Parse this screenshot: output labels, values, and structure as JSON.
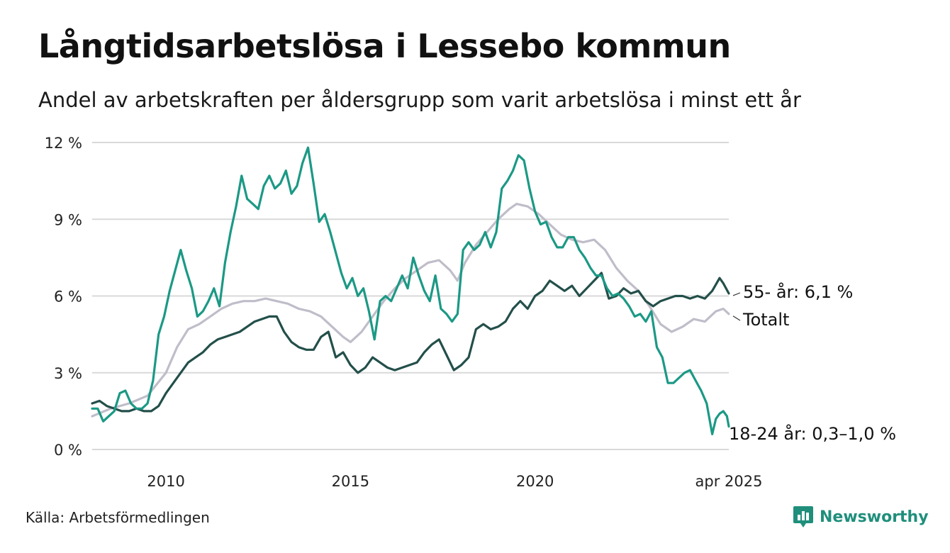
{
  "chart_data": {
    "type": "line",
    "title": "Långtidsarbetslösa i Lessebo kommun",
    "subtitle": "Andel av arbetskraften per åldersgrupp som varit arbetslösa i minst ett år",
    "ylim": [
      0,
      12
    ],
    "y_ticks": [
      0,
      3,
      6,
      9,
      12
    ],
    "y_tick_labels": [
      "0 %",
      "3 %",
      "6 %",
      "9 %",
      "12 %"
    ],
    "xlim": [
      2008.0,
      2025.25
    ],
    "x_ticks": [
      2010,
      2015,
      2020,
      2025.25
    ],
    "x_tick_labels": [
      "2010",
      "2015",
      "2020",
      "apr 2025"
    ],
    "grid": "horizontal",
    "series": [
      {
        "key": "total",
        "name": "Totalt",
        "label": "Totalt",
        "color": "#c0bdca",
        "points": [
          [
            2008.0,
            1.3
          ],
          [
            2008.5,
            1.6
          ],
          [
            2009.0,
            1.8
          ],
          [
            2009.5,
            2.1
          ],
          [
            2010.0,
            3.0
          ],
          [
            2010.3,
            4.0
          ],
          [
            2010.6,
            4.7
          ],
          [
            2010.9,
            4.9
          ],
          [
            2011.2,
            5.2
          ],
          [
            2011.5,
            5.5
          ],
          [
            2011.8,
            5.7
          ],
          [
            2012.1,
            5.8
          ],
          [
            2012.4,
            5.8
          ],
          [
            2012.7,
            5.9
          ],
          [
            2013.0,
            5.8
          ],
          [
            2013.3,
            5.7
          ],
          [
            2013.6,
            5.5
          ],
          [
            2013.9,
            5.4
          ],
          [
            2014.2,
            5.2
          ],
          [
            2014.5,
            4.8
          ],
          [
            2014.8,
            4.4
          ],
          [
            2015.0,
            4.2
          ],
          [
            2015.3,
            4.6
          ],
          [
            2015.6,
            5.2
          ],
          [
            2015.9,
            5.8
          ],
          [
            2016.2,
            6.3
          ],
          [
            2016.5,
            6.7
          ],
          [
            2016.8,
            7.0
          ],
          [
            2017.1,
            7.3
          ],
          [
            2017.4,
            7.4
          ],
          [
            2017.7,
            7.0
          ],
          [
            2017.9,
            6.6
          ],
          [
            2018.1,
            7.3
          ],
          [
            2018.4,
            8.0
          ],
          [
            2018.7,
            8.5
          ],
          [
            2019.0,
            9.0
          ],
          [
            2019.3,
            9.4
          ],
          [
            2019.5,
            9.6
          ],
          [
            2019.8,
            9.5
          ],
          [
            2020.1,
            9.2
          ],
          [
            2020.4,
            8.8
          ],
          [
            2020.7,
            8.4
          ],
          [
            2021.0,
            8.2
          ],
          [
            2021.3,
            8.1
          ],
          [
            2021.6,
            8.2
          ],
          [
            2021.9,
            7.8
          ],
          [
            2022.2,
            7.1
          ],
          [
            2022.5,
            6.6
          ],
          [
            2022.8,
            6.2
          ],
          [
            2023.1,
            5.6
          ],
          [
            2023.4,
            4.9
          ],
          [
            2023.7,
            4.6
          ],
          [
            2024.0,
            4.8
          ],
          [
            2024.3,
            5.1
          ],
          [
            2024.6,
            5.0
          ],
          [
            2024.9,
            5.4
          ],
          [
            2025.1,
            5.5
          ],
          [
            2025.25,
            5.3
          ]
        ]
      },
      {
        "key": "older",
        "name": "55- år",
        "label": "55- år: 6,1 %",
        "color": "#234f4a",
        "points": [
          [
            2008.0,
            1.8
          ],
          [
            2008.2,
            1.9
          ],
          [
            2008.4,
            1.7
          ],
          [
            2008.6,
            1.6
          ],
          [
            2008.8,
            1.5
          ],
          [
            2009.0,
            1.5
          ],
          [
            2009.2,
            1.6
          ],
          [
            2009.4,
            1.5
          ],
          [
            2009.6,
            1.5
          ],
          [
            2009.8,
            1.7
          ],
          [
            2010.0,
            2.2
          ],
          [
            2010.2,
            2.6
          ],
          [
            2010.4,
            3.0
          ],
          [
            2010.6,
            3.4
          ],
          [
            2010.8,
            3.6
          ],
          [
            2011.0,
            3.8
          ],
          [
            2011.2,
            4.1
          ],
          [
            2011.4,
            4.3
          ],
          [
            2011.6,
            4.4
          ],
          [
            2011.8,
            4.5
          ],
          [
            2012.0,
            4.6
          ],
          [
            2012.2,
            4.8
          ],
          [
            2012.4,
            5.0
          ],
          [
            2012.6,
            5.1
          ],
          [
            2012.8,
            5.2
          ],
          [
            2013.0,
            5.2
          ],
          [
            2013.2,
            4.6
          ],
          [
            2013.4,
            4.2
          ],
          [
            2013.6,
            4.0
          ],
          [
            2013.8,
            3.9
          ],
          [
            2014.0,
            3.9
          ],
          [
            2014.2,
            4.4
          ],
          [
            2014.4,
            4.6
          ],
          [
            2014.6,
            3.6
          ],
          [
            2014.8,
            3.8
          ],
          [
            2015.0,
            3.3
          ],
          [
            2015.2,
            3.0
          ],
          [
            2015.4,
            3.2
          ],
          [
            2015.6,
            3.6
          ],
          [
            2015.8,
            3.4
          ],
          [
            2016.0,
            3.2
          ],
          [
            2016.2,
            3.1
          ],
          [
            2016.4,
            3.2
          ],
          [
            2016.6,
            3.3
          ],
          [
            2016.8,
            3.4
          ],
          [
            2017.0,
            3.8
          ],
          [
            2017.2,
            4.1
          ],
          [
            2017.4,
            4.3
          ],
          [
            2017.6,
            3.7
          ],
          [
            2017.8,
            3.1
          ],
          [
            2018.0,
            3.3
          ],
          [
            2018.2,
            3.6
          ],
          [
            2018.4,
            4.7
          ],
          [
            2018.6,
            4.9
          ],
          [
            2018.8,
            4.7
          ],
          [
            2019.0,
            4.8
          ],
          [
            2019.2,
            5.0
          ],
          [
            2019.4,
            5.5
          ],
          [
            2019.6,
            5.8
          ],
          [
            2019.8,
            5.5
          ],
          [
            2020.0,
            6.0
          ],
          [
            2020.2,
            6.2
          ],
          [
            2020.4,
            6.6
          ],
          [
            2020.6,
            6.4
          ],
          [
            2020.8,
            6.2
          ],
          [
            2021.0,
            6.4
          ],
          [
            2021.2,
            6.0
          ],
          [
            2021.4,
            6.3
          ],
          [
            2021.6,
            6.6
          ],
          [
            2021.8,
            6.9
          ],
          [
            2022.0,
            5.9
          ],
          [
            2022.2,
            6.0
          ],
          [
            2022.4,
            6.3
          ],
          [
            2022.6,
            6.1
          ],
          [
            2022.8,
            6.2
          ],
          [
            2023.0,
            5.8
          ],
          [
            2023.2,
            5.6
          ],
          [
            2023.4,
            5.8
          ],
          [
            2023.6,
            5.9
          ],
          [
            2023.8,
            6.0
          ],
          [
            2024.0,
            6.0
          ],
          [
            2024.2,
            5.9
          ],
          [
            2024.4,
            6.0
          ],
          [
            2024.6,
            5.9
          ],
          [
            2024.8,
            6.2
          ],
          [
            2025.0,
            6.7
          ],
          [
            2025.1,
            6.5
          ],
          [
            2025.25,
            6.1
          ]
        ]
      },
      {
        "key": "young",
        "name": "18-24 år",
        "label": "18-24 år: 0,3–1,0 %",
        "color": "#1b9985",
        "points": [
          [
            2008.0,
            1.6
          ],
          [
            2008.15,
            1.6
          ],
          [
            2008.3,
            1.1
          ],
          [
            2008.45,
            1.3
          ],
          [
            2008.6,
            1.5
          ],
          [
            2008.75,
            2.2
          ],
          [
            2008.9,
            2.3
          ],
          [
            2009.05,
            1.8
          ],
          [
            2009.2,
            1.6
          ],
          [
            2009.35,
            1.6
          ],
          [
            2009.5,
            1.8
          ],
          [
            2009.65,
            2.7
          ],
          [
            2009.8,
            4.5
          ],
          [
            2009.95,
            5.2
          ],
          [
            2010.1,
            6.2
          ],
          [
            2010.25,
            7.0
          ],
          [
            2010.4,
            7.8
          ],
          [
            2010.55,
            7.0
          ],
          [
            2010.7,
            6.3
          ],
          [
            2010.85,
            5.2
          ],
          [
            2011.0,
            5.4
          ],
          [
            2011.15,
            5.8
          ],
          [
            2011.3,
            6.3
          ],
          [
            2011.45,
            5.6
          ],
          [
            2011.6,
            7.3
          ],
          [
            2011.75,
            8.5
          ],
          [
            2011.9,
            9.5
          ],
          [
            2012.05,
            10.7
          ],
          [
            2012.2,
            9.8
          ],
          [
            2012.35,
            9.6
          ],
          [
            2012.5,
            9.4
          ],
          [
            2012.65,
            10.3
          ],
          [
            2012.8,
            10.7
          ],
          [
            2012.95,
            10.2
          ],
          [
            2013.1,
            10.4
          ],
          [
            2013.25,
            10.9
          ],
          [
            2013.4,
            10.0
          ],
          [
            2013.55,
            10.3
          ],
          [
            2013.7,
            11.2
          ],
          [
            2013.85,
            11.8
          ],
          [
            2014.0,
            10.4
          ],
          [
            2014.15,
            8.9
          ],
          [
            2014.3,
            9.2
          ],
          [
            2014.45,
            8.5
          ],
          [
            2014.6,
            7.7
          ],
          [
            2014.75,
            6.9
          ],
          [
            2014.9,
            6.3
          ],
          [
            2015.05,
            6.7
          ],
          [
            2015.2,
            6.0
          ],
          [
            2015.35,
            6.3
          ],
          [
            2015.5,
            5.4
          ],
          [
            2015.65,
            4.3
          ],
          [
            2015.8,
            5.8
          ],
          [
            2015.95,
            6.0
          ],
          [
            2016.1,
            5.8
          ],
          [
            2016.25,
            6.3
          ],
          [
            2016.4,
            6.8
          ],
          [
            2016.55,
            6.3
          ],
          [
            2016.7,
            7.5
          ],
          [
            2016.85,
            6.8
          ],
          [
            2017.0,
            6.2
          ],
          [
            2017.15,
            5.8
          ],
          [
            2017.3,
            6.8
          ],
          [
            2017.45,
            5.5
          ],
          [
            2017.6,
            5.3
          ],
          [
            2017.75,
            5.0
          ],
          [
            2017.9,
            5.3
          ],
          [
            2018.05,
            7.8
          ],
          [
            2018.2,
            8.1
          ],
          [
            2018.35,
            7.8
          ],
          [
            2018.5,
            8.0
          ],
          [
            2018.65,
            8.5
          ],
          [
            2018.8,
            7.9
          ],
          [
            2018.95,
            8.5
          ],
          [
            2019.1,
            10.2
          ],
          [
            2019.25,
            10.5
          ],
          [
            2019.4,
            10.9
          ],
          [
            2019.55,
            11.5
          ],
          [
            2019.7,
            11.3
          ],
          [
            2019.85,
            10.2
          ],
          [
            2020.0,
            9.3
          ],
          [
            2020.15,
            8.8
          ],
          [
            2020.3,
            8.9
          ],
          [
            2020.45,
            8.3
          ],
          [
            2020.6,
            7.9
          ],
          [
            2020.75,
            7.9
          ],
          [
            2020.9,
            8.3
          ],
          [
            2021.05,
            8.3
          ],
          [
            2021.2,
            7.8
          ],
          [
            2021.35,
            7.5
          ],
          [
            2021.5,
            7.1
          ],
          [
            2021.65,
            6.8
          ],
          [
            2021.8,
            6.8
          ],
          [
            2021.95,
            6.3
          ],
          [
            2022.1,
            6.0
          ],
          [
            2022.25,
            6.1
          ],
          [
            2022.4,
            5.9
          ],
          [
            2022.55,
            5.6
          ],
          [
            2022.7,
            5.2
          ],
          [
            2022.85,
            5.3
          ],
          [
            2023.0,
            5.0
          ],
          [
            2023.15,
            5.4
          ],
          [
            2023.3,
            4.0
          ],
          [
            2023.45,
            3.6
          ],
          [
            2023.6,
            2.6
          ],
          [
            2023.75,
            2.6
          ],
          [
            2023.9,
            2.8
          ],
          [
            2024.05,
            3.0
          ],
          [
            2024.2,
            3.1
          ],
          [
            2024.35,
            2.7
          ],
          [
            2024.5,
            2.3
          ],
          [
            2024.65,
            1.8
          ],
          [
            2024.8,
            0.6
          ],
          [
            2024.9,
            1.2
          ],
          [
            2025.0,
            1.4
          ],
          [
            2025.1,
            1.5
          ],
          [
            2025.2,
            1.3
          ],
          [
            2025.25,
            0.9
          ]
        ]
      }
    ]
  },
  "source": "Källa: Arbetsförmedlingen",
  "brand": "Newsworthy"
}
